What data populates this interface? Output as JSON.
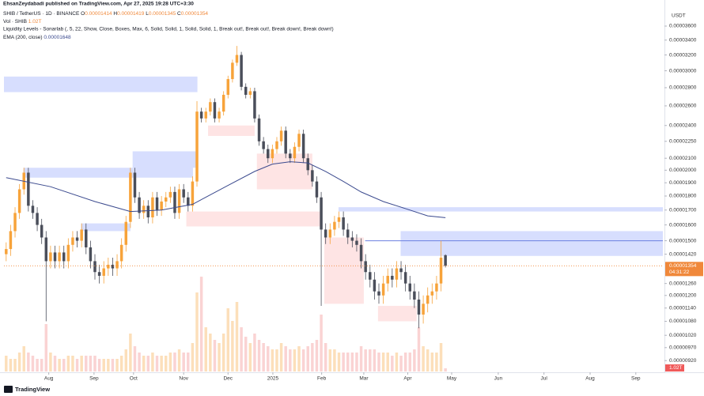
{
  "chart_data": {
    "type": "candlestick",
    "publisher": "EhsanZeydabadi published on TradingView.com, Apr 27, 2025 19:28 UTC+3:30",
    "legend": {
      "symbol": "SHIB / TetherUS · 1D · BINANCE",
      "ohlc_prefixes": [
        "O",
        "H",
        "L",
        "C"
      ],
      "volume": "Vol · SHIB",
      "volume_label": "1.02T",
      "indicator": "Liquidity Levels - Sonarlab (, 5, 22, Show, Close, Boxes, Max, 6, Solid, Solid, 1, Solid, Solid, 1, Break out!, Break out!, Break down!, Break down!)",
      "ema": "EMA (200, close)"
    },
    "currency": "USDT",
    "countdown": "04:31:22",
    "logo": "TradingView",
    "log_scale": true,
    "grid": false,
    "up_color": "#f7a33a",
    "down_color": "#4a4e5a",
    "volume_up_color": "rgba(247,163,58,0.35)",
    "volume_down_color": "rgba(240,110,110,0.3)",
    "price_line_color": "#f0883a",
    "ylim": [
      8.8e-06,
      3.94e-05
    ],
    "yticks": [
      {
        "value": 3.6e-05,
        "label": "0.00003600"
      },
      {
        "value": 3.4e-05,
        "label": "0.00003400"
      },
      {
        "value": 3.2e-05,
        "label": "0.00003200"
      },
      {
        "value": 3e-05,
        "label": "0.00003000"
      },
      {
        "value": 2.8e-05,
        "label": "0.00002800"
      },
      {
        "value": 2.6e-05,
        "label": "0.00002600"
      },
      {
        "value": 2.4e-05,
        "label": "0.00002400"
      },
      {
        "value": 2.25e-05,
        "label": "0.00002250"
      },
      {
        "value": 2.1e-05,
        "label": "0.00002100"
      },
      {
        "value": 2e-05,
        "label": "0.00002000"
      },
      {
        "value": 1.9e-05,
        "label": "0.00001900"
      },
      {
        "value": 1.8e-05,
        "label": "0.00001800"
      },
      {
        "value": 1.7e-05,
        "label": "0.00001700"
      },
      {
        "value": 1.6e-05,
        "label": "0.00001600"
      },
      {
        "value": 1.5e-05,
        "label": "0.00001500"
      },
      {
        "value": 1.42e-05,
        "label": "0.00001420"
      },
      {
        "value": 1.26e-05,
        "label": "0.00001260"
      },
      {
        "value": 1.2e-05,
        "label": "0.00001200"
      },
      {
        "value": 1.14e-05,
        "label": "0.00001140"
      },
      {
        "value": 1.08e-05,
        "label": "0.00001080"
      },
      {
        "value": 1.02e-05,
        "label": "0.00001020"
      },
      {
        "value": 9.7e-06,
        "label": "0.00000970"
      },
      {
        "value": 9.2e-06,
        "label": "0.00000920"
      }
    ],
    "xlim": [
      -0.5,
      148
    ],
    "xticks": [
      {
        "value": 9.6,
        "label": "Aug"
      },
      {
        "value": 19.8,
        "label": "Sep"
      },
      {
        "value": 28.7,
        "label": "Oct"
      },
      {
        "value": 40.0,
        "label": "Nov"
      },
      {
        "value": 50.0,
        "label": "Dec"
      },
      {
        "value": 60.1,
        "label": "2025"
      },
      {
        "value": 71.1,
        "label": "Feb"
      },
      {
        "value": 80.6,
        "label": "Mar"
      },
      {
        "value": 90.5,
        "label": "Apr"
      },
      {
        "value": 100.4,
        "label": "May"
      },
      {
        "value": 110.9,
        "label": "Jun"
      },
      {
        "value": 121.2,
        "label": "Jul"
      },
      {
        "value": 131.6,
        "label": "Aug"
      },
      {
        "value": 141.9,
        "label": "Sep"
      }
    ],
    "open": [
      1.42e-05,
      1.45e-05,
      1.56e-05,
      1.68e-05,
      1.85e-05,
      1.98e-05,
      1.73e-05,
      1.68e-05,
      1.6e-05,
      1.52e-05,
      1.38e-05,
      1.43e-05,
      1.38e-05,
      1.43e-05,
      1.38e-05,
      1.475e-05,
      1.52e-05,
      1.5e-05,
      1.57e-05,
      1.46e-05,
      1.38e-05,
      1.32e-05,
      1.3e-05,
      1.34e-05,
      1.36e-05,
      1.34e-05,
      1.38e-05,
      1.475e-05,
      1.62e-05,
      1.98e-05,
      1.79e-05,
      1.68e-05,
      1.73e-05,
      1.65e-05,
      1.79e-05,
      1.7e-05,
      1.76e-05,
      1.79e-05,
      1.83e-05,
      1.68e-05,
      1.85e-05,
      1.79e-05,
      1.73e-05,
      1.91e-05,
      2.54e-05,
      2.47e-05,
      2.54e-05,
      2.64e-05,
      2.47e-05,
      2.54e-05,
      2.72e-05,
      2.9e-05,
      3.1e-05,
      3.2e-05,
      2.81e-05,
      2.72e-05,
      2.76e-05,
      2.47e-05,
      2.25e-05,
      2.18e-05,
      2.1e-05,
      2.18e-05,
      2.25e-05,
      2.35e-05,
      2.14e-05,
      2.1e-05,
      2.2e-05,
      2.32e-05,
      2.1e-05,
      2e-05,
      1.91e-05,
      1.79e-05,
      1.57e-05,
      1.52e-05,
      1.57e-05,
      1.62e-05,
      1.65e-05,
      1.57e-05,
      1.52e-05,
      1.5e-05,
      1.475e-05,
      1.38e-05,
      1.32e-05,
      1.28e-05,
      1.22e-05,
      1.2e-05,
      1.26e-05,
      1.3e-05,
      1.28e-05,
      1.34e-05,
      1.32e-05,
      1.26e-05,
      1.22e-05,
      1.18e-05,
      1.11e-05,
      1.16e-05,
      1.2e-05,
      1.22e-05,
      1.26e-05,
      1.414e-05
    ],
    "high": [
      1.49e-05,
      1.6e-05,
      1.72e-05,
      1.89e-05,
      2.02e-05,
      2.02e-05,
      1.77e-05,
      1.72e-05,
      1.64e-05,
      1.56e-05,
      1.47e-05,
      1.47e-05,
      1.47e-05,
      1.47e-05,
      1.515e-05,
      1.56e-05,
      1.56e-05,
      1.61e-05,
      1.61e-05,
      1.5e-05,
      1.42e-05,
      1.36e-05,
      1.38e-05,
      1.4e-05,
      1.4e-05,
      1.42e-05,
      1.515e-05,
      1.66e-05,
      2.02e-05,
      2.02e-05,
      1.83e-05,
      1.77e-05,
      1.77e-05,
      1.83e-05,
      1.83e-05,
      1.8e-05,
      1.83e-05,
      1.87e-05,
      1.87e-05,
      1.89e-05,
      1.89e-05,
      1.83e-05,
      1.95e-05,
      2.65e-05,
      2.58e-05,
      2.58e-05,
      2.68e-05,
      2.68e-05,
      2.58e-05,
      2.76e-05,
      2.94e-05,
      3.14e-05,
      3.32e-05,
      3.24e-05,
      2.85e-05,
      2.8e-05,
      2.8e-05,
      2.51e-05,
      2.29e-05,
      2.22e-05,
      2.22e-05,
      2.29e-05,
      2.39e-05,
      2.39e-05,
      2.18e-05,
      2.24e-05,
      2.36e-05,
      2.36e-05,
      2.14e-05,
      2.04e-05,
      1.95e-05,
      1.83e-05,
      1.61e-05,
      1.61e-05,
      1.66e-05,
      1.69e-05,
      1.69e-05,
      1.61e-05,
      1.56e-05,
      1.54e-05,
      1.515e-05,
      1.42e-05,
      1.36e-05,
      1.32e-05,
      1.26e-05,
      1.3e-05,
      1.34e-05,
      1.34e-05,
      1.38e-05,
      1.38e-05,
      1.36e-05,
      1.3e-05,
      1.26e-05,
      1.22e-05,
      1.2e-05,
      1.24e-05,
      1.26e-05,
      1.3e-05,
      1.5e-05,
      1.419e-05
    ],
    "low": [
      1.38e-05,
      1.41e-05,
      1.52e-05,
      1.64e-05,
      1.81e-05,
      1.69e-05,
      1.64e-05,
      1.56e-05,
      1.48e-05,
      1.08e-05,
      1.34e-05,
      1.34e-05,
      1.34e-05,
      1.34e-05,
      1.34e-05,
      1.435e-05,
      1.46e-05,
      1.46e-05,
      1.42e-05,
      1.34e-05,
      1.28e-05,
      1.26e-05,
      1.26e-05,
      1.3e-05,
      1.3e-05,
      1.3e-05,
      1.34e-05,
      1.435e-05,
      1.58e-05,
      1.75e-05,
      1.64e-05,
      1.64e-05,
      1.61e-05,
      1.61e-05,
      1.66e-05,
      1.66e-05,
      1.72e-05,
      1.75e-05,
      1.64e-05,
      1.64e-05,
      1.75e-05,
      1.69e-05,
      1.69e-05,
      1.87e-05,
      2.43e-05,
      2.43e-05,
      2.5e-05,
      2.43e-05,
      2.43e-05,
      2.5e-05,
      2.68e-05,
      2.86e-05,
      3.06e-05,
      2.77e-05,
      2.68e-05,
      2.68e-05,
      2.43e-05,
      2.21e-05,
      2.14e-05,
      2.06e-05,
      2.06e-05,
      2.14e-05,
      2.21e-05,
      2.1e-05,
      2.06e-05,
      2.06e-05,
      2.16e-05,
      2.06e-05,
      1.96e-05,
      1.87e-05,
      1.75e-05,
      1.15e-05,
      1.48e-05,
      1.48e-05,
      1.53e-05,
      1.58e-05,
      1.53e-05,
      1.48e-05,
      1.46e-05,
      1.435e-05,
      1.34e-05,
      1.28e-05,
      1.24e-05,
      1.18e-05,
      1.16e-05,
      1.16e-05,
      1.22e-05,
      1.24e-05,
      1.24e-05,
      1.28e-05,
      1.22e-05,
      1.18e-05,
      1.14e-05,
      1.05e-05,
      1.07e-05,
      1.12e-05,
      1.16e-05,
      1.18e-05,
      1.22e-05,
      1.345e-05
    ],
    "close": [
      1.45e-05,
      1.56e-05,
      1.68e-05,
      1.85e-05,
      1.98e-05,
      1.73e-05,
      1.68e-05,
      1.6e-05,
      1.52e-05,
      1.38e-05,
      1.43e-05,
      1.38e-05,
      1.43e-05,
      1.38e-05,
      1.475e-05,
      1.52e-05,
      1.5e-05,
      1.57e-05,
      1.46e-05,
      1.38e-05,
      1.32e-05,
      1.3e-05,
      1.34e-05,
      1.36e-05,
      1.34e-05,
      1.38e-05,
      1.475e-05,
      1.62e-05,
      1.98e-05,
      1.79e-05,
      1.68e-05,
      1.73e-05,
      1.65e-05,
      1.79e-05,
      1.7e-05,
      1.76e-05,
      1.79e-05,
      1.83e-05,
      1.68e-05,
      1.85e-05,
      1.79e-05,
      1.73e-05,
      1.91e-05,
      2.54e-05,
      2.47e-05,
      2.54e-05,
      2.64e-05,
      2.47e-05,
      2.54e-05,
      2.72e-05,
      2.9e-05,
      3.1e-05,
      3.2e-05,
      2.81e-05,
      2.72e-05,
      2.76e-05,
      2.47e-05,
      2.25e-05,
      2.18e-05,
      2.1e-05,
      2.18e-05,
      2.25e-05,
      2.35e-05,
      2.14e-05,
      2.1e-05,
      2.2e-05,
      2.32e-05,
      2.1e-05,
      2e-05,
      1.91e-05,
      1.79e-05,
      1.57e-05,
      1.52e-05,
      1.57e-05,
      1.62e-05,
      1.65e-05,
      1.57e-05,
      1.52e-05,
      1.5e-05,
      1.475e-05,
      1.38e-05,
      1.32e-05,
      1.28e-05,
      1.22e-05,
      1.2e-05,
      1.26e-05,
      1.3e-05,
      1.28e-05,
      1.34e-05,
      1.32e-05,
      1.26e-05,
      1.22e-05,
      1.18e-05,
      1.11e-05,
      1.16e-05,
      1.2e-05,
      1.22e-05,
      1.26e-05,
      1.4e-05,
      1.354e-05
    ],
    "volume": [
      5,
      4,
      4,
      6,
      8,
      6,
      5,
      4,
      4,
      15,
      6,
      5,
      4,
      4,
      5,
      5,
      4,
      5,
      5,
      5,
      5,
      4,
      4,
      4,
      4,
      4,
      5,
      7,
      12,
      8,
      6,
      5,
      5,
      6,
      5,
      5,
      5,
      6,
      6,
      7,
      6,
      6,
      9,
      25,
      30,
      14,
      12,
      10,
      9,
      12,
      20,
      16,
      22,
      14,
      11,
      9,
      12,
      10,
      9,
      8,
      7,
      7,
      9,
      8,
      7,
      7,
      8,
      7,
      8,
      9,
      10,
      18,
      9,
      7,
      7,
      6,
      6,
      6,
      6,
      6,
      8,
      7,
      7,
      7,
      6,
      6,
      6,
      5,
      6,
      5,
      6,
      6,
      7,
      14,
      8,
      7,
      6,
      6,
      9,
      1.02
    ],
    "ema": {
      "color": "#3b4a8e",
      "x": [
        0,
        10,
        20,
        28,
        35,
        42,
        50,
        56,
        60,
        64,
        68,
        72,
        76,
        80,
        85,
        90,
        95,
        99
      ],
      "values": [
        1.94e-05,
        1.87e-05,
        1.76e-05,
        1.69e-05,
        1.7e-05,
        1.74e-05,
        1.88e-05,
        1.99e-05,
        2.05e-05,
        2.07e-05,
        2.06e-05,
        1.99e-05,
        1.91e-05,
        1.83e-05,
        1.76e-05,
        1.71e-05,
        1.66e-05,
        1.648e-05
      ]
    },
    "zones": [
      {
        "x": [
          -0.5,
          43.1
        ],
        "y": [
          2.75e-05,
          2.93e-05
        ],
        "color": "rgba(110,135,250,0.28)"
      },
      {
        "x": [
          3.9,
          42.1
        ],
        "y": [
          1.94e-05,
          2.02e-05
        ],
        "color": "rgba(110,135,250,0.28)"
      },
      {
        "x": [
          28.5,
          43.0
        ],
        "y": [
          2.02e-05,
          2.16e-05
        ],
        "color": "rgba(110,135,250,0.28)"
      },
      {
        "x": [
          16.9,
          28.0
        ],
        "y": [
          1.56e-05,
          1.61e-05
        ],
        "color": "rgba(110,135,250,0.28)"
      },
      {
        "x": [
          74.9,
          148
        ],
        "y": [
          1.69e-05,
          1.72e-05
        ],
        "color": "rgba(110,135,250,0.28)"
      },
      {
        "x": [
          88.9,
          148
        ],
        "y": [
          1.41e-05,
          1.56e-05
        ],
        "color": "rgba(110,135,250,0.28)"
      },
      {
        "x": [
          45.5,
          56.0
        ],
        "y": [
          2.3e-05,
          2.4e-05
        ],
        "color": "rgba(250,120,120,0.2)"
      },
      {
        "x": [
          56.5,
          69.0
        ],
        "y": [
          1.85e-05,
          2.14e-05
        ],
        "color": "rgba(250,120,120,0.2)"
      },
      {
        "x": [
          40.6,
          70.9
        ],
        "y": [
          1.59e-05,
          1.69e-05
        ],
        "color": "rgba(250,120,120,0.2)"
      },
      {
        "x": [
          71.7,
          80.6
        ],
        "y": [
          1.16e-05,
          1.52e-05
        ],
        "color": "rgba(250,120,120,0.2)"
      },
      {
        "x": [
          83.8,
          92.5
        ],
        "y": [
          1.08e-05,
          1.15e-05
        ],
        "color": "rgba(250,120,120,0.2)"
      }
    ],
    "levels": [
      {
        "x": [
          80.9,
          148
        ],
        "value": 1.5e-05,
        "color": "#6b7fe0"
      }
    ]
  }
}
